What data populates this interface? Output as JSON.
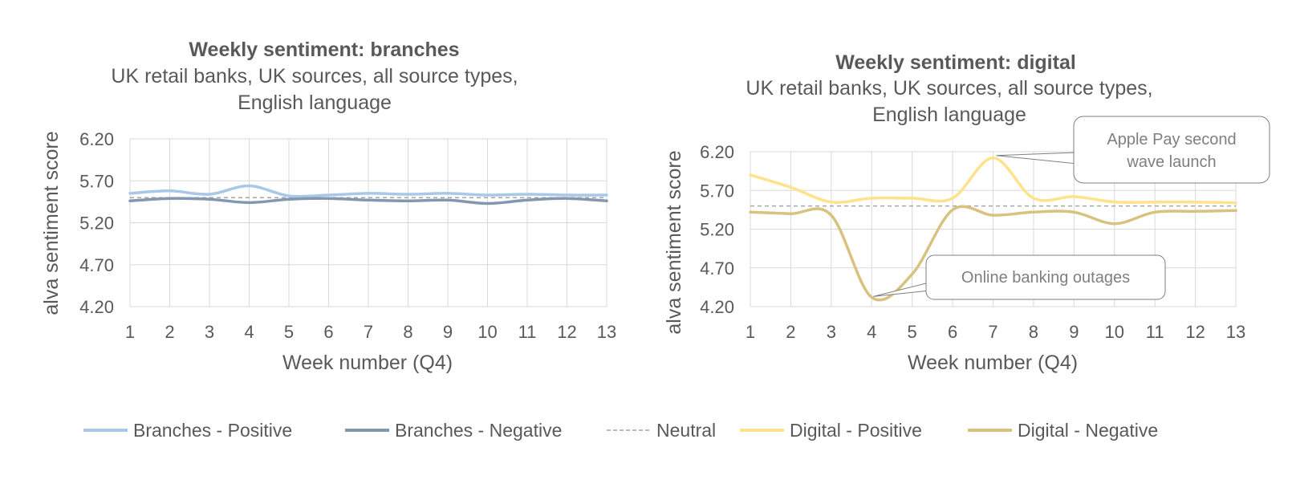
{
  "chart_data": [
    {
      "type": "line",
      "title": "Weekly sentiment: branches",
      "subtitle_lines": [
        "UK retail banks, UK sources, all source types,",
        "English language"
      ],
      "xlabel": "Week number (Q4)",
      "ylabel": "alva sentiment score",
      "ylim": [
        4.2,
        6.2
      ],
      "yticks": [
        "6.20",
        "5.70",
        "5.20",
        "4.70",
        "4.20"
      ],
      "x": [
        "1",
        "2",
        "3",
        "4",
        "5",
        "6",
        "7",
        "8",
        "9",
        "10",
        "11",
        "12",
        "13"
      ],
      "grid": true,
      "series": [
        {
          "name": "Branches - Positive",
          "color": "#a9c8e8",
          "dashed": false,
          "values": [
            5.55,
            5.58,
            5.54,
            5.64,
            5.52,
            5.53,
            5.55,
            5.54,
            5.55,
            5.53,
            5.54,
            5.53,
            5.53
          ]
        },
        {
          "name": "Branches - Negative",
          "color": "#8497b0",
          "dashed": false,
          "values": [
            5.46,
            5.49,
            5.48,
            5.44,
            5.48,
            5.49,
            5.47,
            5.46,
            5.47,
            5.43,
            5.47,
            5.49,
            5.46
          ]
        },
        {
          "name": "Neutral",
          "color": "#a6a6a6",
          "dashed": true,
          "values": [
            5.5,
            5.5,
            5.5,
            5.5,
            5.5,
            5.5,
            5.5,
            5.5,
            5.5,
            5.5,
            5.5,
            5.5,
            5.5
          ]
        }
      ]
    },
    {
      "type": "line",
      "title": "Weekly sentiment: digital",
      "subtitle_lines": [
        "UK retail banks, UK sources, all source types,",
        "English language"
      ],
      "xlabel": "Week number (Q4)",
      "ylabel": "alva sentiment score",
      "ylim": [
        4.2,
        6.2
      ],
      "yticks": [
        "6.20",
        "5.70",
        "5.20",
        "4.70",
        "4.20"
      ],
      "x": [
        "1",
        "2",
        "3",
        "4",
        "5",
        "6",
        "7",
        "8",
        "9",
        "10",
        "11",
        "12",
        "13"
      ],
      "grid": true,
      "series": [
        {
          "name": "Digital - Positive",
          "color": "#ffe28a",
          "dashed": false,
          "values": [
            5.9,
            5.74,
            5.55,
            5.6,
            5.6,
            5.6,
            6.12,
            5.6,
            5.62,
            5.55,
            5.55,
            5.55,
            5.54
          ]
        },
        {
          "name": "Digital - Negative",
          "color": "#d9c27f",
          "dashed": false,
          "values": [
            5.42,
            5.4,
            5.38,
            4.32,
            4.62,
            5.45,
            5.38,
            5.42,
            5.42,
            5.27,
            5.42,
            5.43,
            5.44
          ]
        },
        {
          "name": "Neutral",
          "color": "#a6a6a6",
          "dashed": true,
          "values": [
            5.5,
            5.5,
            5.5,
            5.5,
            5.5,
            5.5,
            5.5,
            5.5,
            5.5,
            5.5,
            5.5,
            5.5,
            5.5
          ]
        }
      ],
      "annotations": [
        {
          "text_lines": [
            "Apple Pay second",
            "wave launch"
          ],
          "x": "7",
          "y": 6.12
        },
        {
          "text_lines": [
            "Online banking outages"
          ],
          "x": "4",
          "y": 4.32
        }
      ]
    }
  ],
  "legend": [
    {
      "label": "Branches - Positive",
      "color": "#a9c8e8",
      "dashed": false
    },
    {
      "label": "Branches - Negative",
      "color": "#8497b0",
      "dashed": false
    },
    {
      "label": "Neutral",
      "color": "#a6a6a6",
      "dashed": true
    },
    {
      "label": "Digital - Positive",
      "color": "#ffe28a",
      "dashed": false
    },
    {
      "label": "Digital - Negative",
      "color": "#d9c27f",
      "dashed": false
    }
  ]
}
